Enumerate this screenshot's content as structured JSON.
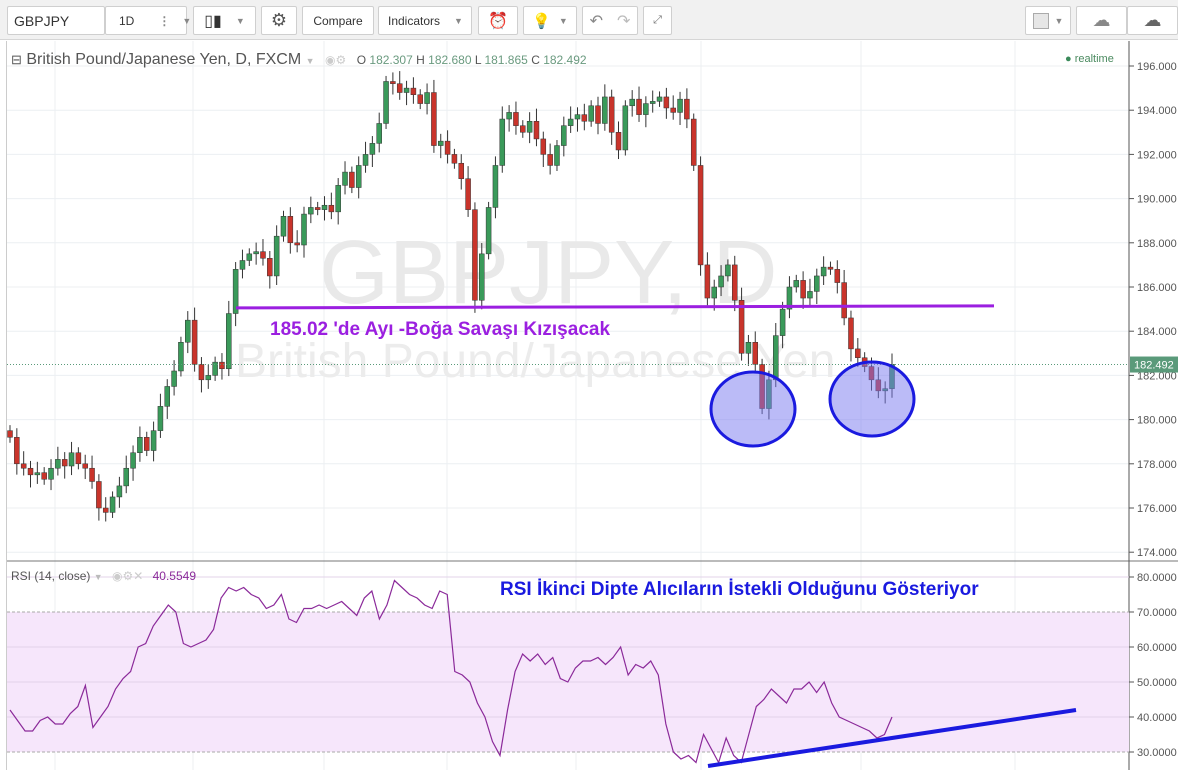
{
  "toolbar": {
    "symbol": "GBPJPY",
    "interval": "1D",
    "compare": "Compare",
    "indicators": "Indicators"
  },
  "legend": {
    "title": "British Pound/Japanese Yen, D, FXCM",
    "o_label": "O",
    "o": "182.307",
    "h_label": "H",
    "h": "182.680",
    "l_label": "L",
    "l": "181.865",
    "c_label": "C",
    "c": "182.492",
    "realtime": "realtime"
  },
  "watermark": {
    "symbol": "GBPJPY, D",
    "name": "British Pound/Japanese Yen"
  },
  "rsi_legend": {
    "title": "RSI (14, close)",
    "value": "40.5549"
  },
  "annotations": {
    "main": "185.02 'de Ayı -Boğa Savaşı Kızışacak",
    "rsi": "RSI İkinci Dipte Alıcıların İstekli Olduğunu Gösteriyor"
  },
  "colors": {
    "up": "#3a9a5a",
    "down": "#c9342b",
    "line": "#9b1fe0",
    "rsi": "#8b2a9a",
    "trend": "#1a1adf",
    "band": "#f6e6fb"
  },
  "chart_data": [
    {
      "type": "candlestick",
      "symbol": "GBPJPY",
      "ylim": [
        174,
        196.5
      ],
      "yticks": [
        "196.000",
        "194.000",
        "192.000",
        "190.000",
        "188.000",
        "186.000",
        "184.000",
        "182.000",
        "180.000",
        "178.000",
        "176.000",
        "174.000"
      ],
      "last_price": "182.492",
      "closes": [
        179.2,
        178,
        177.8,
        177.5,
        177.6,
        177.3,
        177.8,
        178.2,
        177.9,
        178.5,
        178.0,
        177.8,
        177.2,
        176.0,
        175.8,
        176.5,
        177.0,
        177.8,
        178.5,
        179.2,
        178.6,
        179.5,
        180.6,
        181.5,
        182.2,
        183.5,
        184.5,
        182.5,
        181.8,
        182.0,
        182.6,
        182.3,
        184.8,
        186.8,
        187.2,
        187.5,
        187.6,
        187.3,
        186.5,
        188.3,
        189.2,
        188.0,
        187.9,
        189.3,
        189.6,
        189.5,
        189.7,
        189.4,
        190.6,
        191.2,
        190.5,
        191.5,
        192.0,
        192.5,
        193.4,
        195.3,
        195.2,
        194.8,
        195.0,
        194.7,
        194.3,
        194.8,
        192.4,
        192.6,
        192.0,
        191.6,
        190.9,
        189.5,
        185.4,
        187.5,
        189.6,
        191.5,
        193.6,
        193.9,
        193.3,
        193.0,
        193.5,
        192.7,
        192.0,
        191.5,
        192.4,
        193.3,
        193.6,
        193.8,
        193.5,
        194.2,
        193.4,
        194.6,
        193.0,
        192.2,
        194.2,
        194.5,
        193.8,
        194.3,
        194.4,
        194.6,
        194.1,
        193.9,
        194.5,
        193.6,
        191.5,
        187.0,
        185.5,
        186.0,
        186.5,
        187.0,
        185.4,
        183.0,
        183.5,
        182.5,
        180.5,
        181.8,
        183.8,
        185.0,
        186.0,
        186.3,
        185.5,
        185.8,
        186.5,
        186.9,
        186.8,
        186.2,
        184.6,
        183.2,
        182.8,
        182.4,
        181.8,
        181.3,
        181.4,
        182.5
      ],
      "horizontal_line": 185.1
    },
    {
      "type": "line",
      "name": "RSI (14, close)",
      "ylim": [
        25,
        82
      ],
      "yticks": [
        "80.0000",
        "70.0000",
        "60.0000",
        "50.0000",
        "40.0000",
        "30.0000"
      ],
      "band": [
        30,
        70
      ],
      "values": [
        42,
        39,
        36,
        36,
        39,
        40,
        38,
        38,
        41,
        43,
        49,
        37,
        40,
        43,
        48,
        51,
        53,
        60,
        61,
        66,
        69,
        72,
        70,
        61,
        60,
        61,
        62,
        65,
        74,
        77,
        76,
        77,
        75,
        74,
        71,
        72,
        75,
        68,
        67,
        71,
        71,
        72,
        71,
        72,
        73,
        71,
        69,
        74,
        76,
        68,
        72,
        79,
        77,
        75,
        74,
        72,
        71,
        76,
        75,
        53,
        52,
        50,
        44,
        40,
        33,
        29,
        42,
        53,
        58,
        56,
        58,
        55,
        57,
        51,
        50,
        54,
        56,
        56,
        57,
        55,
        57,
        60,
        52,
        55,
        54,
        56,
        52,
        38,
        30,
        28,
        29,
        27,
        35,
        31,
        27,
        34,
        29,
        27,
        35,
        43,
        45,
        48,
        46,
        44,
        48,
        48,
        50,
        47,
        50,
        44,
        40,
        39,
        38,
        37,
        36,
        34,
        35,
        40
      ],
      "trend_line": [
        26,
        42
      ]
    }
  ]
}
